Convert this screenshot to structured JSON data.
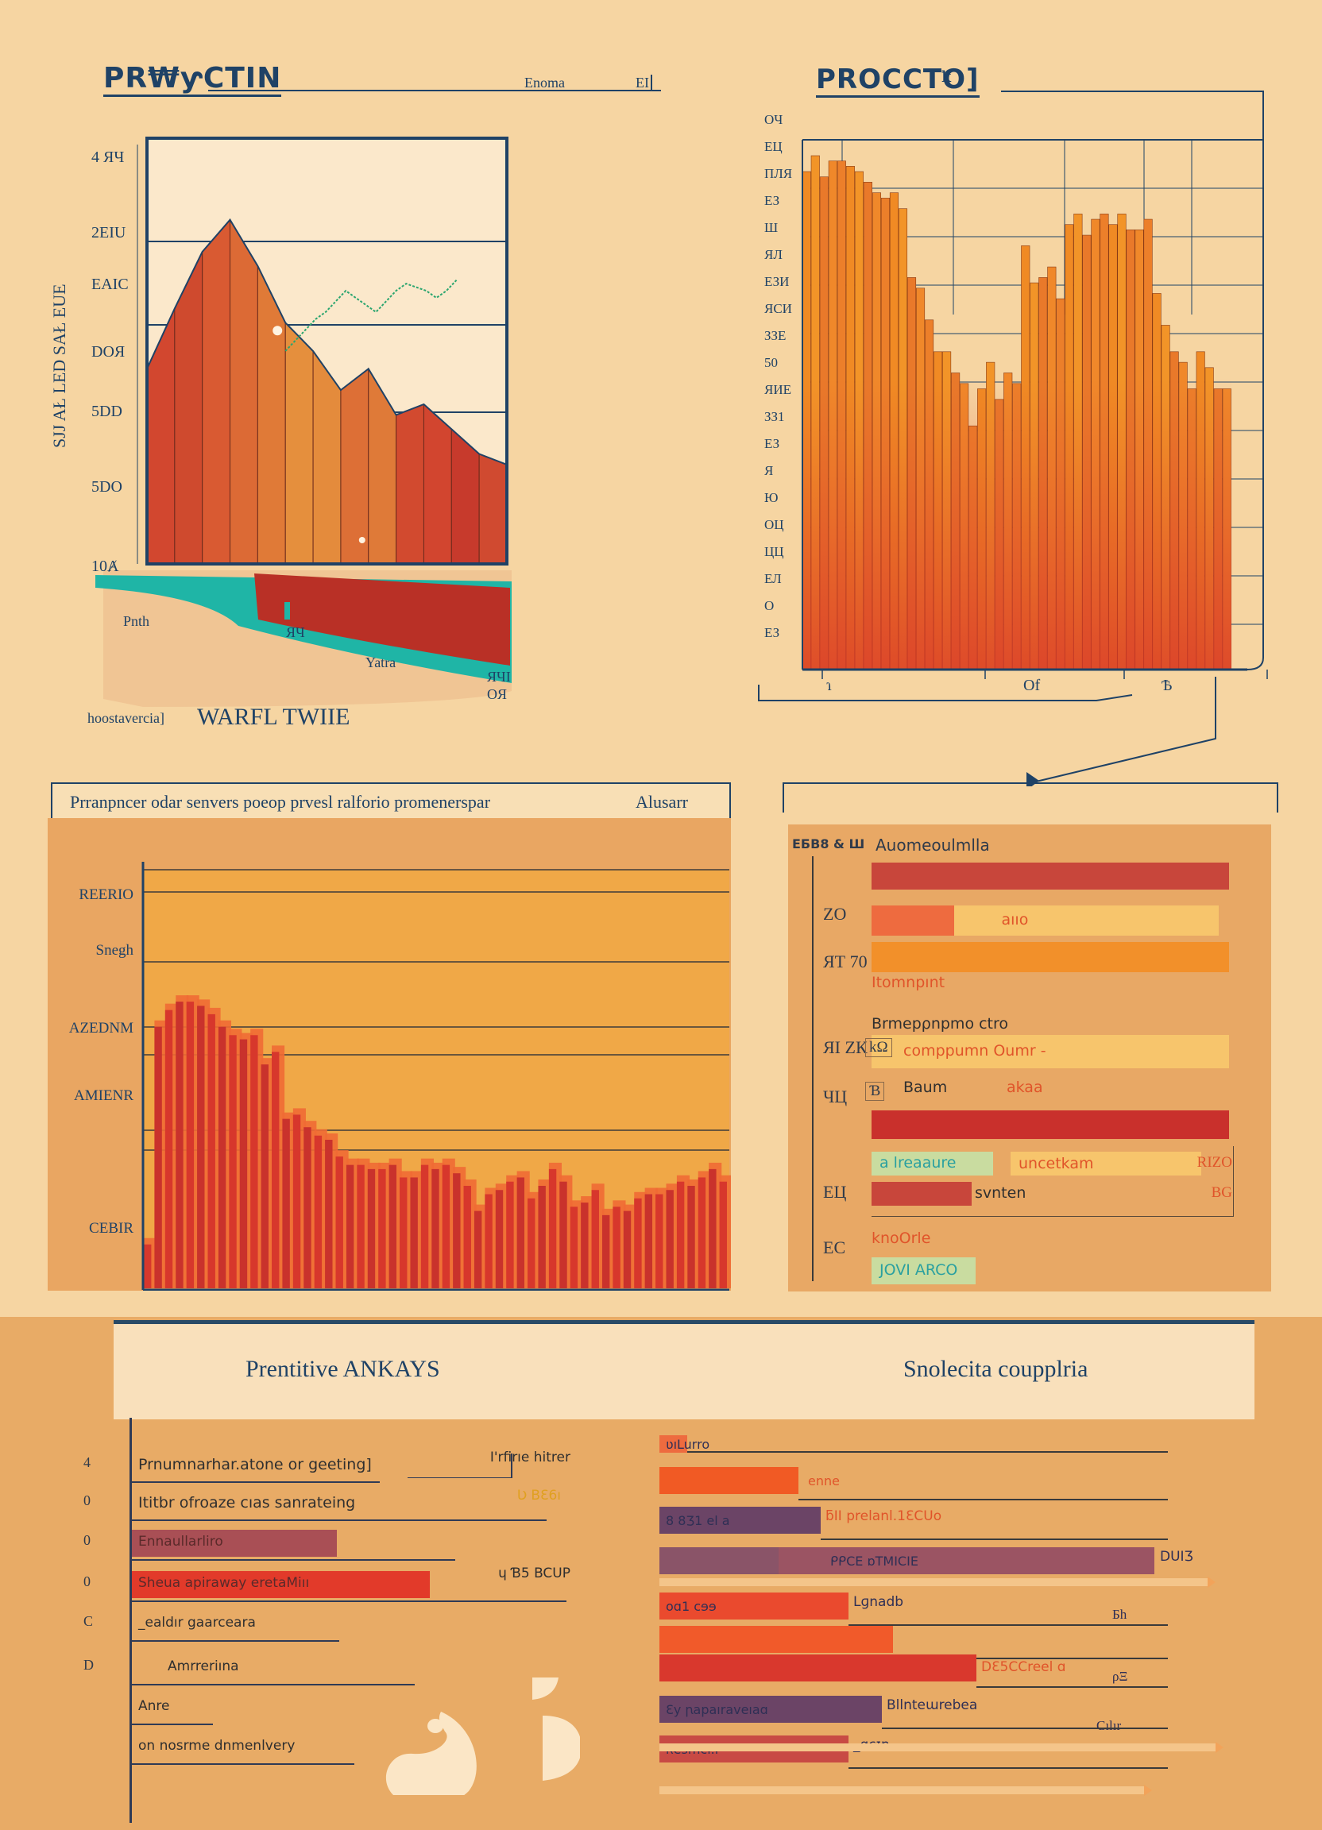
{
  "colors": {
    "background": "#f6d5a2",
    "navy": "#1f4266",
    "panel_orange": "#e8a865",
    "red": "#c9372c",
    "orange": "#f08a24",
    "teal": "#1fb5a6",
    "green_line": "#2aa56f",
    "cream": "#fbe8cb",
    "purple": "#6b4466",
    "mint": "#c9dca0"
  },
  "header_left": {
    "title": "PR₩ƴCTIN",
    "sub_label": "Enoma",
    "sub_label_2": "EI"
  },
  "header_right": {
    "title": "PROCCTO]",
    "mark": "ꝁ"
  },
  "chart_data": [
    {
      "id": "area-mountain",
      "type": "area",
      "title": "PR₩ƴCTIN",
      "ylabel": "SJJ AŁ LED SAŁ EUE",
      "ytick_labels": [
        "4 ЯЧ",
        "2EIU",
        "EAIC",
        "DOЯ",
        "5DD",
        "5DO",
        "10Ⱥ"
      ],
      "x": [
        0,
        1,
        2,
        3,
        4,
        5,
        6,
        7,
        8,
        9,
        10,
        11,
        12,
        13
      ],
      "values": [
        55,
        72,
        88,
        97,
        84,
        68,
        60,
        49,
        55,
        42,
        45,
        38,
        31,
        28
      ],
      "secondary_line": {
        "name": "trend",
        "x_start": 5,
        "values": [
          60,
          63,
          66,
          69,
          71,
          74,
          77,
          75,
          73,
          71,
          74,
          77,
          79,
          78,
          77,
          75,
          77,
          80
        ]
      },
      "ground_labels": [
        "Pnth",
        "ЯЧ",
        "Yatra",
        "ЯЧI",
        "OЯ"
      ],
      "footer_label_small": "hoostavercia]",
      "footer_label_big": "WARFL TWIIE",
      "ylim": [
        0,
        120
      ]
    },
    {
      "id": "orange-bars",
      "type": "bar",
      "title": "PROCCTO]",
      "ytick_labels": [
        "OЧ",
        "ЕЦ",
        "ПЛЯ",
        "ЕЗ",
        "Ш",
        "ЯЛ",
        "ЕЗИ",
        "ЯСИ",
        "ЗЗЕ",
        "50",
        "ЯИЕ",
        "ЗЗ1",
        "ЕЗ",
        "Я",
        "Ю",
        "ОЦ",
        "ЦЦ",
        "ЕЛ",
        "О",
        "ЕЗ"
      ],
      "xtick_labels": [
        "ɿ",
        "Of",
        "Ѣ"
      ],
      "values": [
        94,
        97,
        93,
        96,
        96,
        95,
        94,
        92,
        90,
        89,
        90,
        87,
        74,
        72,
        66,
        60,
        60,
        56,
        54,
        46,
        53,
        58,
        51,
        56,
        54,
        80,
        73,
        74,
        76,
        70,
        84,
        86,
        82,
        85,
        86,
        84,
        86,
        83,
        83,
        85,
        71,
        65,
        60,
        58,
        53,
        60,
        57,
        53,
        53
      ],
      "ylim": [
        0,
        100
      ]
    },
    {
      "id": "red-bars",
      "type": "bar",
      "title": "Prranpncer odar senvers poeop prvesl ralforio promenerspar",
      "title_right": "Alusarr",
      "ytick_labels": [
        "REERIO",
        "Snegh",
        "AZEDNM",
        "AMIENR",
        "CEBIR"
      ],
      "values": [
        12,
        64,
        68,
        70,
        70,
        69,
        67,
        64,
        62,
        61,
        62,
        55,
        58,
        42,
        43,
        40,
        38,
        37,
        33,
        31,
        31,
        30,
        30,
        31,
        28,
        28,
        31,
        30,
        31,
        29,
        26,
        20,
        24,
        25,
        27,
        28,
        23,
        26,
        30,
        27,
        21,
        22,
        25,
        19,
        21,
        20,
        23,
        24,
        24,
        25,
        27,
        26,
        28,
        30,
        27
      ],
      "ylim": [
        0,
        100
      ]
    },
    {
      "id": "progress-bars",
      "type": "bar",
      "orientation": "horizontal",
      "header": "Auomeoulmlla",
      "axis_top_label": "ЕБВ8 & Ш",
      "ytick_labels": [
        "ZO",
        "ЯТ 70",
        "ЯІ ZК",
        "ЧЦ",
        "ЕЦ",
        "ЕС"
      ],
      "rows": [
        {
          "label": "",
          "value": 100,
          "color": "#c8463b"
        },
        {
          "label": "aııo",
          "value": 23,
          "track": 97,
          "color": "#ee6b3f"
        },
        {
          "label": "",
          "value": 100,
          "color": "#f2902a"
        },
        {
          "label": "Itomnpınt",
          "value": 0,
          "color": "#f08a24"
        },
        {
          "label": "Brmepρnpmo ctro",
          "value": 0
        },
        {
          "label": "comppumn Oumr -",
          "prefix": "kΩ",
          "value": 0,
          "track": 100
        },
        {
          "label": "Baum",
          "prefix": "Ɓ",
          "tag": "akaa",
          "value": 0
        },
        {
          "label": "",
          "value": 100,
          "color": "#c9302c"
        },
        {
          "label": "a lreaaure",
          "tag": "uncetkam",
          "end_label": "RIZO",
          "value": 34,
          "color": "#c9dca0"
        },
        {
          "label": "svnten",
          "end_label": "BG",
          "value": 28,
          "color": "#c8463b"
        },
        {
          "label": "knoOrle",
          "value": 0
        },
        {
          "label": "JOVI ARCO",
          "value": 29,
          "color": "#c9dca0"
        }
      ]
    },
    {
      "id": "predictive-list",
      "type": "bar",
      "orientation": "horizontal",
      "title": "Prentitive ANKAYS",
      "ytick_labels": [
        "4",
        "0",
        "0",
        "0",
        "C",
        "D"
      ],
      "rows": [
        {
          "label": "Prnumnarhar.atone or geeting]",
          "side_label": "I'rfirıe hitrer",
          "value": 0
        },
        {
          "label": "Ititbr ofroaze cıas sanrateing",
          "side_label": "Ʋ BƐ6ı",
          "value": 0
        },
        {
          "label": "Ennaullarliro",
          "value": 46,
          "color": "#a94f55"
        },
        {
          "label": "Sheua apiraway eretaMiıı",
          "side_label": "ɥ Ɓ5 BCUP",
          "value": 67,
          "color": "#e23a2a"
        },
        {
          "label": "_ealdır gaarceara",
          "value": 0
        },
        {
          "label": "Amrreriına",
          "value": 0
        },
        {
          "label": "Anre",
          "value": 0
        },
        {
          "label": "on nosrme dnmenlvery",
          "value": 0
        }
      ]
    },
    {
      "id": "comparison-bars",
      "type": "bar",
      "orientation": "horizontal",
      "title": "Snolecita coupplria",
      "rows": [
        {
          "label": "ʋıLurro",
          "value": 5,
          "color": "#ee6b3f"
        },
        {
          "label": "enne",
          "value": 25,
          "color": "#f15a24"
        },
        {
          "label": "8 8Ʒ1 el a",
          "side_label": "ƃΙΙ prelanl.1ƐCUo",
          "value": 29,
          "color": "#6b4466"
        },
        {
          "label": "ᑭᑭCE ɒTMICIE",
          "side_label": "DUIƷ",
          "value": 89,
          "color": "#9b5463"
        },
        {
          "label": "oɑ1 cɘɘ",
          "side_label": "Lɡnadb",
          "end_label": "Ƃh",
          "value": 34,
          "color": "#ea4a2e"
        },
        {
          "label": "",
          "value": 42,
          "color": "#f15a2a"
        },
        {
          "label": "",
          "side_label": "DƐ5CCreel ɑ",
          "end_label": "ρΞ",
          "value": 57,
          "color": "#d9382d"
        },
        {
          "label": "Ɛy ꞃapaıraveıaɑ",
          "side_label": "Bllnteɯrebea",
          "end_label": "Cılır",
          "value": 40,
          "color": "#6b4466"
        },
        {
          "label": "ʀesmcı.l",
          "side_label": "_ɑcɪn",
          "value": 34,
          "color": "#c84a44"
        }
      ]
    }
  ]
}
